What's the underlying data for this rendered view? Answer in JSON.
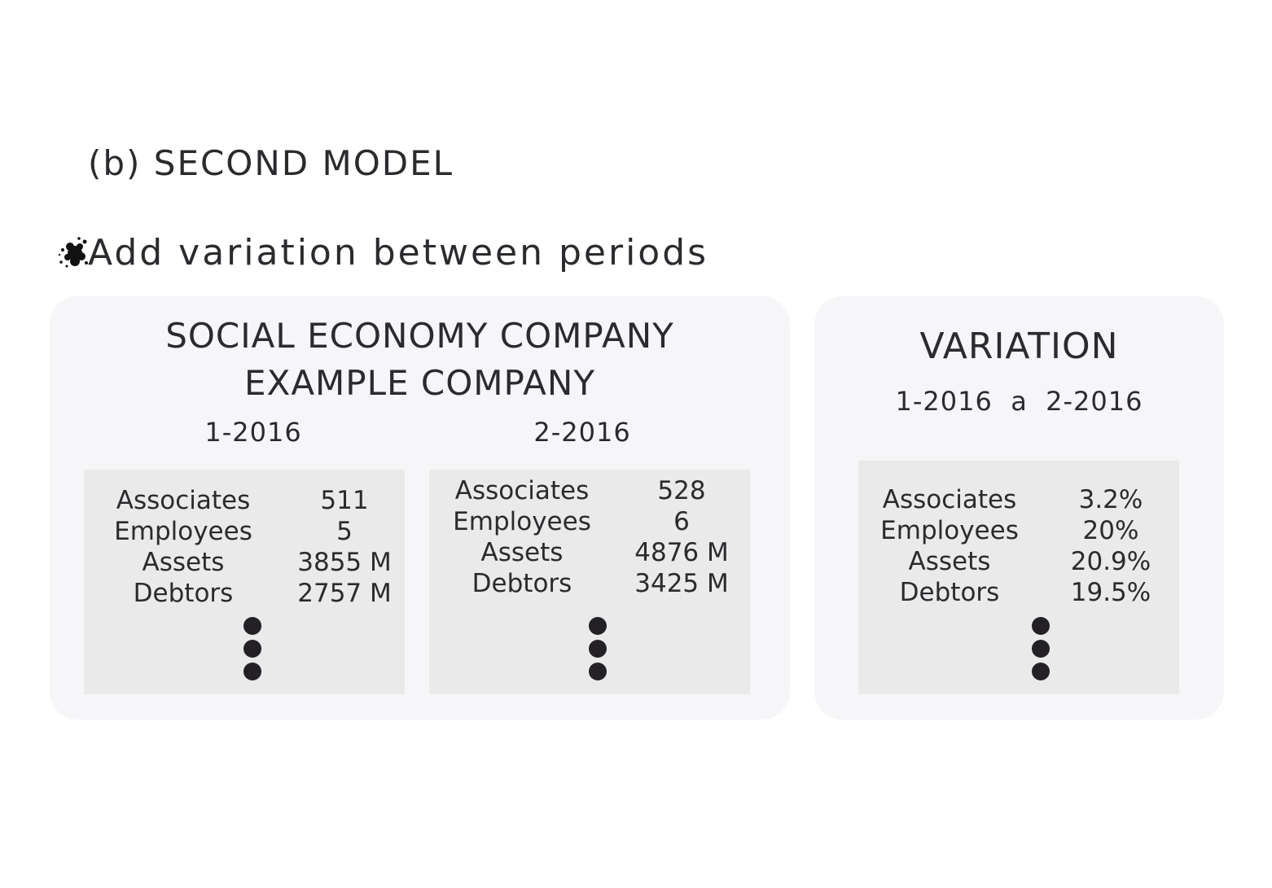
{
  "heading": "(b) SECOND MODEL",
  "bullet": {
    "icon": "ink-splat-icon",
    "text": "Add variation between periods"
  },
  "company_panel": {
    "title_line1": "SOCIAL ECONOMY COMPANY",
    "title_line2": "EXAMPLE COMPANY",
    "periods": [
      {
        "label": "1-2016",
        "rows": [
          {
            "label": "Associates",
            "value": "511"
          },
          {
            "label": "Employees",
            "value": "5"
          },
          {
            "label": "Assets",
            "value": "3855 M"
          },
          {
            "label": "Debtors",
            "value": "2757 M"
          }
        ]
      },
      {
        "label": "2-2016",
        "rows": [
          {
            "label": "Associates",
            "value": "528"
          },
          {
            "label": "Employees",
            "value": "6"
          },
          {
            "label": "Assets",
            "value": "4876 M"
          },
          {
            "label": "Debtors",
            "value": "3425 M"
          }
        ]
      }
    ]
  },
  "variation_panel": {
    "title": "VARIATION",
    "range": "1-2016  a  2-2016",
    "rows": [
      {
        "label": "Associates",
        "value": "3.2%"
      },
      {
        "label": "Employees",
        "value": "20%"
      },
      {
        "label": "Assets",
        "value": "20.9%"
      },
      {
        "label": "Debtors",
        "value": "19.5%"
      }
    ]
  },
  "colors": {
    "panel": "#f6f6f8",
    "box": "#eaeaea",
    "text": "#2b2a2e",
    "dot": "#232126"
  }
}
